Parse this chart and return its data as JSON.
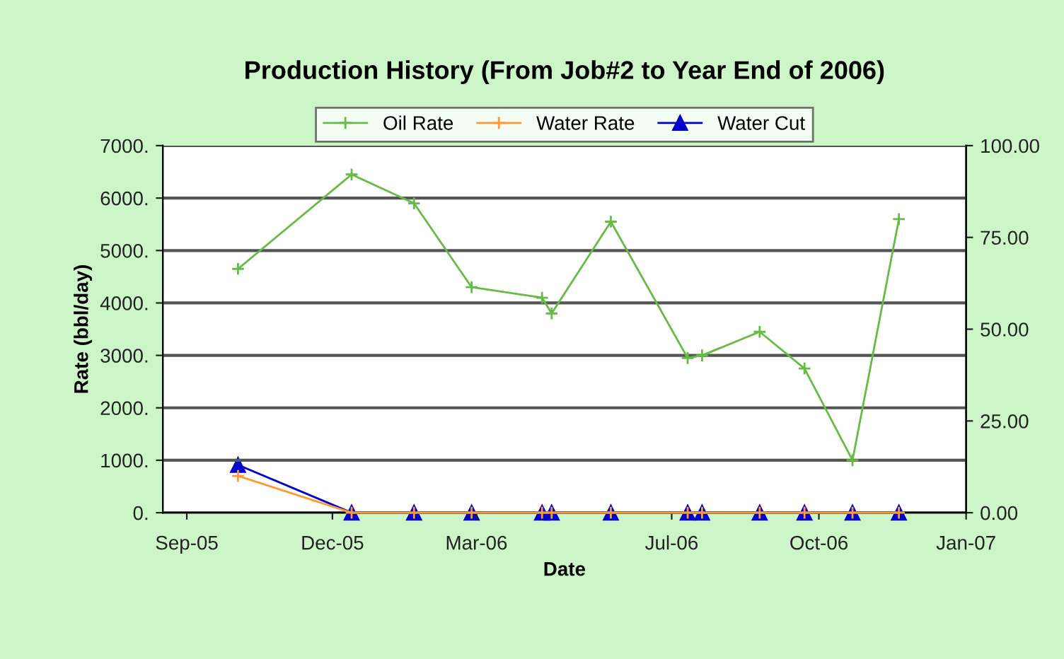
{
  "chart_data": {
    "type": "line",
    "title": "Production History (From Job#2 to Year End of 2006)",
    "xlabel": "Date",
    "ylabel": "Rate (bbl/day)",
    "x": [
      "2005-10-03",
      "2005-12-13",
      "2006-01-21",
      "2006-02-26",
      "2006-04-11",
      "2006-04-17",
      "2006-05-24",
      "2006-07-11",
      "2006-07-20",
      "2006-08-25",
      "2006-09-22",
      "2006-10-22",
      "2006-11-20"
    ],
    "series": [
      {
        "name": "Oil Rate",
        "color": "#66bb44",
        "marker": "cross",
        "values": [
          4650,
          6450,
          5900,
          4300,
          4100,
          3800,
          5550,
          2950,
          3000,
          3450,
          2750,
          1000,
          5600
        ]
      },
      {
        "name": "Water Rate",
        "color": "#ff9933",
        "marker": "cross",
        "values": [
          700,
          0,
          0,
          0,
          0,
          0,
          0,
          0,
          0,
          0,
          0,
          0,
          0
        ]
      },
      {
        "name": "Water Cut",
        "color": "#0000cc",
        "marker": "triangle",
        "axis": "y2",
        "values": [
          13,
          0,
          0,
          0,
          0,
          0,
          0,
          0,
          0,
          0,
          0,
          0,
          0
        ]
      }
    ],
    "xlim": [
      "2005-08-17",
      "2007-01-01"
    ],
    "xticks": [
      {
        "value": "2005-09-01",
        "label": "Sep-05"
      },
      {
        "value": "2005-12-01",
        "label": "Dec-05"
      },
      {
        "value": "2006-03-01",
        "label": "Mar-06"
      },
      {
        "value": "2006-07-01",
        "label": "Jul-06"
      },
      {
        "value": "2006-10-01",
        "label": "Oct-06"
      },
      {
        "value": "2007-01-01",
        "label": "Jan-07"
      }
    ],
    "ylim": [
      0,
      7000
    ],
    "yticks": [
      {
        "value": 0,
        "label": "0."
      },
      {
        "value": 1000,
        "label": "1000."
      },
      {
        "value": 2000,
        "label": "2000."
      },
      {
        "value": 3000,
        "label": "3000."
      },
      {
        "value": 4000,
        "label": "4000."
      },
      {
        "value": 5000,
        "label": "5000."
      },
      {
        "value": 6000,
        "label": "6000."
      },
      {
        "value": 7000,
        "label": "7000."
      }
    ],
    "y2lim": [
      0,
      100
    ],
    "y2ticks": [
      {
        "value": 0,
        "label": "0.00"
      },
      {
        "value": 25,
        "label": "25.00"
      },
      {
        "value": 50,
        "label": "50.00"
      },
      {
        "value": 75,
        "label": "75.00"
      },
      {
        "value": 100,
        "label": "100.00"
      }
    ],
    "grid": "y",
    "legend": "top",
    "line_style": "solid"
  }
}
